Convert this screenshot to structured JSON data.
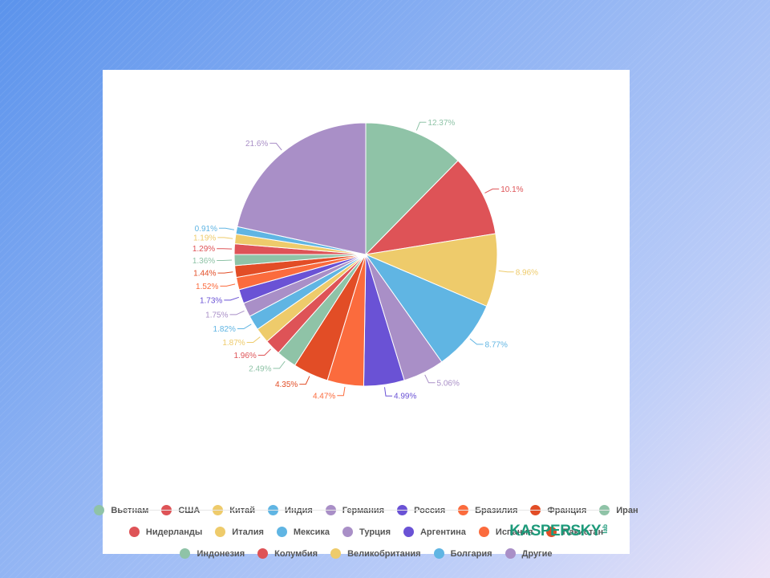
{
  "chart_data": {
    "type": "pie",
    "categories": [
      "Вьетнам",
      "США",
      "Китай",
      "Индия",
      "Германия",
      "Россия",
      "Бразилия",
      "Франция",
      "Иран",
      "Нидерланды",
      "Италия",
      "Мексика",
      "Турция",
      "Аргентина",
      "Испания",
      "Пакистан",
      "Индонезия",
      "Колумбия",
      "Великобритания",
      "Болгария",
      "Другие"
    ],
    "values": [
      12.37,
      10.1,
      8.96,
      8.77,
      5.06,
      4.99,
      4.47,
      4.35,
      2.49,
      1.96,
      1.87,
      1.82,
      1.75,
      1.73,
      1.52,
      1.44,
      1.36,
      1.29,
      1.19,
      0.91,
      21.6
    ],
    "labels": [
      "12.37%",
      "10.1%",
      "8.96%",
      "8.77%",
      "5.06%",
      "4.99%",
      "4.47%",
      "4.35%",
      "2.49%",
      "1.96%",
      "1.87%",
      "1.82%",
      "1.75%",
      "1.73%",
      "1.52%",
      "1.44%",
      "1.36%",
      "1.29%",
      "1.19%",
      "0.91%",
      "21.6%"
    ],
    "colors": [
      "#8fc3a7",
      "#de5357",
      "#eecb6b",
      "#60b5e3",
      "#a98fc7",
      "#6a52d5",
      "#fb6b3d",
      "#e24d26",
      "#8fc3a7",
      "#de5357",
      "#eecb6b",
      "#60b5e3",
      "#a98fc7",
      "#6a52d5",
      "#fb6b3d",
      "#e24d26",
      "#8fc3a7",
      "#de5357",
      "#eecb6b",
      "#60b5e3",
      "#a98fc7"
    ],
    "legend_placement": "bottom"
  },
  "legend_rows": [
    [
      0,
      1,
      2,
      3,
      4,
      5,
      6,
      7,
      8
    ],
    [
      9,
      10,
      11,
      12,
      13,
      14,
      15
    ],
    [
      16,
      17,
      18,
      19,
      20
    ]
  ],
  "logo": {
    "text": "KASPERSKY",
    "lab": "lab"
  },
  "icons": {
    "logo": "kaspersky-lab-logo"
  }
}
